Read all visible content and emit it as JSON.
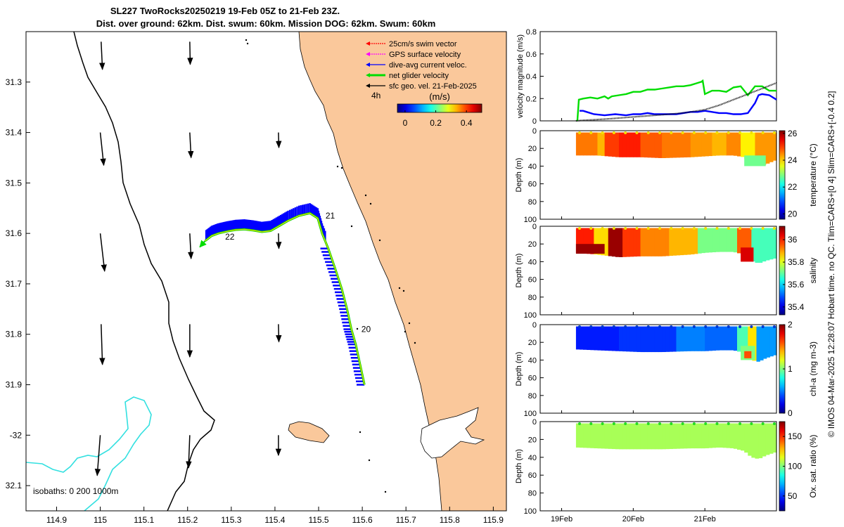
{
  "title_line1": "SL227 TwoRocks20250219 19-Feb 05Z to 21-Feb 23Z.",
  "title_line2": "Dist. over ground: 62km. Dist. swum: 60km. Mission DOG: 62km. Swum: 60km",
  "footer_text": "© IMOS 04-Mar-2025 12:28:07 Hobart time. no QC. Tlim=CARS+[0 4] Slim=CARS+[-0.4 0.2]",
  "colors": {
    "land": "#fac89b",
    "isobath200": "#33e0e0",
    "gps": "#ff00ff",
    "swim": "#ff0000",
    "dive_avg": "#0000ff",
    "net": "#00dd00",
    "track": "#e8e800"
  },
  "chart_data": [
    {
      "type": "map",
      "xlim": [
        114.83,
        115.93
      ],
      "ylim": [
        -32.15,
        -31.2
      ],
      "x_ticks": [
        114.9,
        115,
        115.1,
        115.2,
        115.3,
        115.4,
        115.5,
        115.6,
        115.7,
        115.8,
        115.9
      ],
      "x_tick_labels": [
        "114.9",
        "115",
        "115.1",
        "115.2",
        "115.3",
        "115.4",
        "115.5",
        "115.6",
        "115.7",
        "115.8",
        "115.9"
      ],
      "y_ticks": [
        -31.3,
        -31.4,
        -31.5,
        -31.6,
        -31.7,
        -31.8,
        -31.9,
        -32,
        -32.1
      ],
      "y_tick_labels": [
        "31.3",
        "31.4",
        "31.5",
        "31.6",
        "31.7",
        "31.8",
        "31.9",
        "-32",
        "32.1"
      ],
      "legend": [
        {
          "label": "25cm/s swim vector",
          "color": "#ff0000"
        },
        {
          "label": "GPS surface velocity",
          "color": "#ff00ff"
        },
        {
          "label": "dive-avg current veloc.",
          "color": "#0000ff"
        },
        {
          "label": "net glider velocity",
          "color": "#00dd00"
        },
        {
          "label": "sfc geo. vel. 21-Feb-2025",
          "color": "#000000"
        }
      ],
      "legend_placement": "top-right",
      "time_step_label": "4h",
      "colorbar_label": "(m/s)",
      "colorbar_ticks": [
        0,
        0.2,
        0.4
      ],
      "colorbar_tick_labels": [
        "0",
        "0.2",
        "0.4"
      ],
      "colorbar_range": [
        -0.05,
        0.5
      ],
      "isobath_label": "isobaths: 0   200  1000m",
      "track": [
        [
          115.605,
          -31.9
        ],
        [
          115.595,
          -31.86
        ],
        [
          115.585,
          -31.82
        ],
        [
          115.575,
          -31.79
        ],
        [
          115.565,
          -31.75
        ],
        [
          115.553,
          -31.71
        ],
        [
          115.538,
          -31.67
        ],
        [
          115.522,
          -31.63
        ],
        [
          115.508,
          -31.6
        ],
        [
          115.498,
          -31.57
        ],
        [
          115.48,
          -31.56
        ],
        [
          115.455,
          -31.565
        ],
        [
          115.43,
          -31.575
        ],
        [
          115.41,
          -31.585
        ],
        [
          115.39,
          -31.595
        ],
        [
          115.37,
          -31.597
        ],
        [
          115.35,
          -31.594
        ],
        [
          115.33,
          -31.592
        ],
        [
          115.31,
          -31.593
        ],
        [
          115.29,
          -31.596
        ],
        [
          115.27,
          -31.6
        ],
        [
          115.255,
          -31.605
        ],
        [
          115.24,
          -31.615
        ]
      ],
      "day_labels": [
        {
          "label": "20",
          "lon": 115.585,
          "lat": -31.79
        },
        {
          "label": "21",
          "lon": 115.503,
          "lat": -31.565
        },
        {
          "label": "22",
          "lon": 115.273,
          "lat": -31.607
        }
      ],
      "geo_vectors": [
        [
          115.002,
          -31.22,
          0.003,
          -0.055
        ],
        [
          115.205,
          -31.22,
          0.001,
          -0.045
        ],
        [
          115.0,
          -31.4,
          0.008,
          -0.065
        ],
        [
          115.205,
          -31.4,
          0.003,
          -0.05
        ],
        [
          115.408,
          -31.4,
          0.001,
          -0.03
        ],
        [
          115.0,
          -31.6,
          0.01,
          -0.075
        ],
        [
          115.205,
          -31.6,
          0.003,
          -0.05
        ],
        [
          115.408,
          -31.6,
          0.001,
          -0.03
        ],
        [
          115.002,
          -31.78,
          0.003,
          -0.08
        ],
        [
          115.205,
          -31.78,
          0.0,
          -0.065
        ],
        [
          115.408,
          -31.78,
          0.001,
          -0.035
        ],
        [
          115.0,
          -32.0,
          -0.007,
          -0.08
        ],
        [
          115.205,
          -32.0,
          -0.003,
          -0.065
        ],
        [
          115.408,
          -32.0,
          0.0,
          -0.04
        ]
      ]
    },
    {
      "type": "line",
      "ylabel": "velocity magnitude (m/s)",
      "ylim": [
        0,
        0.8
      ],
      "y_ticks": [
        0,
        0.2,
        0.4,
        0.6,
        0.8
      ],
      "xlim": [
        18.7,
        22.0
      ],
      "series": [
        {
          "color": "#00dd00",
          "x": [
            19.22,
            19.24,
            19.3,
            19.4,
            19.5,
            19.6,
            19.65,
            19.7,
            19.8,
            19.9,
            20.0,
            20.1,
            20.2,
            20.3,
            20.4,
            20.5,
            20.6,
            20.7,
            20.8,
            20.9,
            20.95,
            20.97,
            21.0,
            21.1,
            21.2,
            21.3,
            21.4,
            21.5,
            21.6,
            21.7,
            21.8,
            21.9,
            22.0
          ],
          "y": [
            0.0,
            0.19,
            0.2,
            0.21,
            0.2,
            0.22,
            0.2,
            0.22,
            0.23,
            0.24,
            0.26,
            0.26,
            0.28,
            0.28,
            0.29,
            0.3,
            0.31,
            0.31,
            0.32,
            0.34,
            0.35,
            0.36,
            0.24,
            0.27,
            0.27,
            0.26,
            0.3,
            0.31,
            0.23,
            0.31,
            0.31,
            0.27,
            0.27
          ]
        },
        {
          "color": "#0000ff",
          "x": [
            19.25,
            19.3,
            19.35,
            19.45,
            19.6,
            19.75,
            19.9,
            20.0,
            20.1,
            20.2,
            20.3,
            20.4,
            20.5,
            20.6,
            20.7,
            20.8,
            20.9,
            21.0,
            21.1,
            21.2,
            21.3,
            21.4,
            21.5,
            21.6,
            21.7,
            21.75,
            21.8,
            21.9,
            22.0
          ],
          "y": [
            0.09,
            0.09,
            0.08,
            0.06,
            0.05,
            0.06,
            0.05,
            0.06,
            0.06,
            0.07,
            0.06,
            0.06,
            0.06,
            0.06,
            0.07,
            0.08,
            0.08,
            0.09,
            0.08,
            0.07,
            0.07,
            0.06,
            0.06,
            0.07,
            0.16,
            0.23,
            0.24,
            0.23,
            0.19
          ]
        },
        {
          "color": "#000000",
          "x": [
            19.2,
            19.3,
            19.4,
            19.5,
            19.6,
            19.7,
            19.8,
            19.9,
            20.0,
            20.1,
            20.2,
            20.3,
            20.4,
            20.5,
            20.6,
            20.7,
            20.8,
            20.9,
            21.0,
            21.1,
            21.2,
            21.3,
            21.4,
            21.5,
            21.6,
            21.7,
            21.8,
            21.9,
            22.0
          ],
          "y": [
            0.0,
            0.005,
            0.008,
            0.012,
            0.016,
            0.02,
            0.025,
            0.03,
            0.035,
            0.04,
            0.045,
            0.05,
            0.055,
            0.06,
            0.065,
            0.072,
            0.08,
            0.09,
            0.1,
            0.12,
            0.14,
            0.165,
            0.19,
            0.215,
            0.24,
            0.265,
            0.29,
            0.315,
            0.34
          ]
        }
      ]
    },
    {
      "type": "heatmap",
      "variable": "temperature",
      "ylabel": "Depth (m)",
      "ylim": [
        100,
        0
      ],
      "y_ticks": [
        0,
        20,
        40,
        60,
        80,
        100
      ],
      "colorbar_label": "temperature (°C)",
      "clim": [
        19.6,
        26.2
      ],
      "colorbar_ticks": [
        20,
        22,
        24,
        26
      ],
      "colorbar_tick_labels": [
        "20",
        "22",
        "24",
        "26"
      ],
      "surface_dots": "#f0e000",
      "segments": [
        [
          19.2,
          19.5,
          24.6
        ],
        [
          19.5,
          19.6,
          24.2
        ],
        [
          19.6,
          19.8,
          25.0
        ],
        [
          19.8,
          20.1,
          25.2
        ],
        [
          20.1,
          20.4,
          24.8
        ],
        [
          20.4,
          20.8,
          24.6
        ],
        [
          20.8,
          21.1,
          24.4
        ],
        [
          21.1,
          21.3,
          24.2
        ],
        [
          21.3,
          21.5,
          24.5
        ],
        [
          21.5,
          21.7,
          23.8
        ],
        [
          21.7,
          22.0,
          24.4
        ]
      ],
      "bottom": [
        [
          19.2,
          28
        ],
        [
          19.5,
          28
        ],
        [
          19.8,
          30
        ],
        [
          20.1,
          30
        ],
        [
          20.4,
          31
        ],
        [
          20.8,
          30
        ],
        [
          21.0,
          29
        ],
        [
          21.2,
          28
        ],
        [
          21.4,
          28
        ],
        [
          21.55,
          30
        ],
        [
          21.65,
          37
        ],
        [
          21.75,
          40
        ],
        [
          21.85,
          38
        ],
        [
          22.0,
          33
        ]
      ]
    },
    {
      "type": "heatmap",
      "variable": "salinity",
      "ylabel": "Depth (m)",
      "ylim": [
        100,
        0
      ],
      "y_ticks": [
        0,
        20,
        40,
        60,
        80,
        100
      ],
      "colorbar_label": "salinity",
      "clim": [
        35.33,
        36.12
      ],
      "colorbar_ticks": [
        35.4,
        35.6,
        35.8,
        36
      ],
      "colorbar_tick_labels": [
        "35.4",
        "35.6",
        "35.8",
        "36"
      ],
      "surface_dots": "#f0e000",
      "segments": [
        [
          19.2,
          19.45,
          36.0
        ],
        [
          19.45,
          19.65,
          35.85
        ],
        [
          19.65,
          19.85,
          36.1
        ],
        [
          19.85,
          20.1,
          35.98
        ],
        [
          20.1,
          20.5,
          35.92
        ],
        [
          20.5,
          20.9,
          35.88
        ],
        [
          20.9,
          21.1,
          35.72
        ],
        [
          21.1,
          21.45,
          35.72
        ],
        [
          21.45,
          21.65,
          35.95
        ],
        [
          21.65,
          22.0,
          35.68
        ]
      ],
      "bottom": [
        [
          19.2,
          30
        ],
        [
          19.5,
          32
        ],
        [
          19.8,
          35
        ],
        [
          20.1,
          34
        ],
        [
          20.4,
          34
        ],
        [
          20.8,
          32
        ],
        [
          21.0,
          30
        ],
        [
          21.2,
          29
        ],
        [
          21.4,
          29
        ],
        [
          21.55,
          32
        ],
        [
          21.65,
          39
        ],
        [
          21.75,
          42
        ],
        [
          21.85,
          39
        ],
        [
          22.0,
          36
        ]
      ]
    },
    {
      "type": "heatmap",
      "variable": "chl-a",
      "ylabel": "Depth (m)",
      "ylim": [
        100,
        0
      ],
      "y_ticks": [
        0,
        20,
        40,
        60,
        80,
        100
      ],
      "colorbar_label": "chl-a (mg m-3)",
      "clim": [
        0,
        2
      ],
      "colorbar_ticks": [
        0,
        1,
        2
      ],
      "colorbar_tick_labels": [
        "0",
        "1",
        "2"
      ],
      "surface_dots": "#0038d0",
      "segments": [
        [
          19.2,
          19.8,
          0.3
        ],
        [
          19.8,
          20.6,
          0.35
        ],
        [
          20.6,
          21.0,
          0.5
        ],
        [
          21.0,
          21.45,
          0.45
        ],
        [
          21.45,
          21.6,
          0.9
        ],
        [
          21.6,
          21.72,
          1.3
        ],
        [
          21.72,
          22.0,
          0.55
        ]
      ],
      "bottom": [
        [
          19.2,
          28
        ],
        [
          19.5,
          29
        ],
        [
          19.8,
          30
        ],
        [
          20.1,
          31
        ],
        [
          20.4,
          31
        ],
        [
          20.8,
          30
        ],
        [
          21.0,
          30
        ],
        [
          21.2,
          29
        ],
        [
          21.4,
          29
        ],
        [
          21.55,
          32
        ],
        [
          21.65,
          40
        ],
        [
          21.75,
          42
        ],
        [
          21.85,
          38
        ],
        [
          22.0,
          34
        ]
      ]
    },
    {
      "type": "heatmap",
      "variable": "oxygen",
      "ylabel": "Depth (m)",
      "ylim": [
        100,
        0
      ],
      "y_ticks": [
        0,
        20,
        40,
        60,
        80,
        100
      ],
      "colorbar_label": "Ox. sat. ratio (%)",
      "clim": [
        25,
        175
      ],
      "colorbar_ticks": [
        50,
        100,
        150
      ],
      "colorbar_tick_labels": [
        "50",
        "100",
        "150"
      ],
      "surface_dots": "#22dd22",
      "segments": [
        [
          19.2,
          22.0,
          106
        ]
      ],
      "bottom": [
        [
          19.2,
          29
        ],
        [
          19.5,
          30
        ],
        [
          19.8,
          31
        ],
        [
          20.1,
          31
        ],
        [
          20.4,
          31
        ],
        [
          20.8,
          30
        ],
        [
          21.0,
          30
        ],
        [
          21.2,
          29
        ],
        [
          21.4,
          30
        ],
        [
          21.55,
          33
        ],
        [
          21.65,
          40
        ],
        [
          21.75,
          42
        ],
        [
          21.85,
          38
        ],
        [
          22.0,
          34
        ]
      ]
    }
  ],
  "time_axis": {
    "xlim": [
      18.7,
      22.0
    ],
    "ticks": [
      19,
      20,
      21
    ],
    "tick_labels": [
      "19Feb",
      "20Feb",
      "21Feb"
    ]
  }
}
